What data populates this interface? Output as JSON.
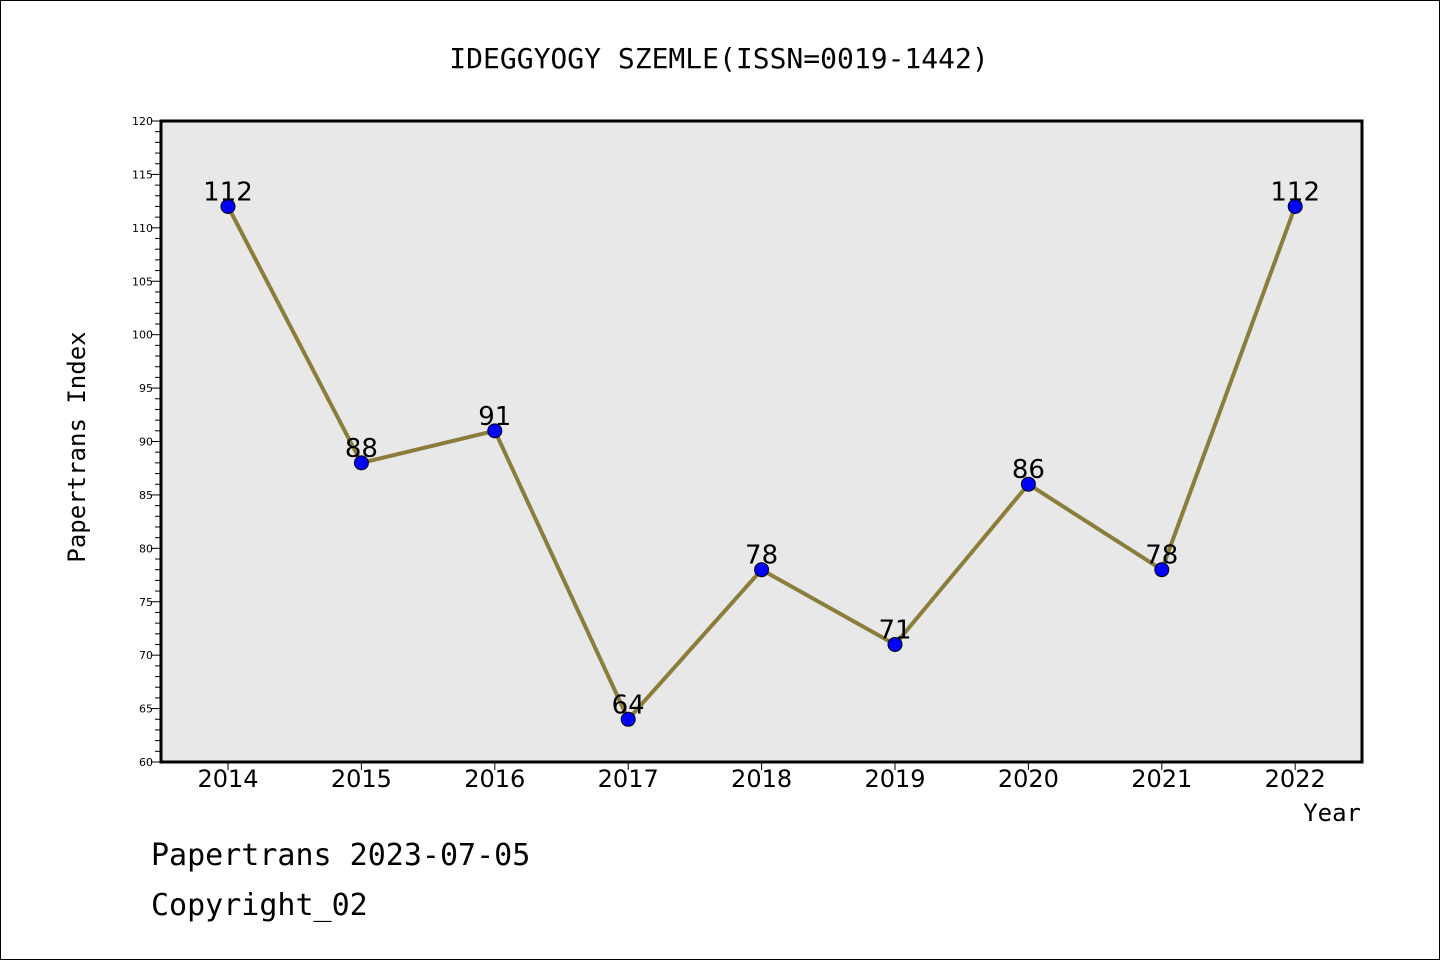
{
  "chart_data": {
    "type": "line",
    "title": "IDEGGYOGY SZEMLE(ISSN=0019-1442)",
    "xlabel": "Year",
    "ylabel": "Papertrans Index",
    "ylim": [
      60,
      120
    ],
    "yticks": [
      60,
      65,
      70,
      75,
      80,
      85,
      90,
      95,
      100,
      105,
      110,
      115,
      120
    ],
    "grid": false,
    "x": [
      "2014",
      "2015",
      "2016",
      "2017",
      "2018",
      "2019",
      "2020",
      "2021",
      "2022"
    ],
    "series": [
      {
        "values": [
          112,
          88,
          91,
          64,
          78,
          71,
          86,
          78,
          112
        ],
        "line_color": "#8b7d3a",
        "marker_color": "#0000ff"
      }
    ],
    "plot_background": "#e8e8e8"
  },
  "footer": {
    "line1": "Papertrans 2023-07-05",
    "line2": "Copyright_02"
  }
}
